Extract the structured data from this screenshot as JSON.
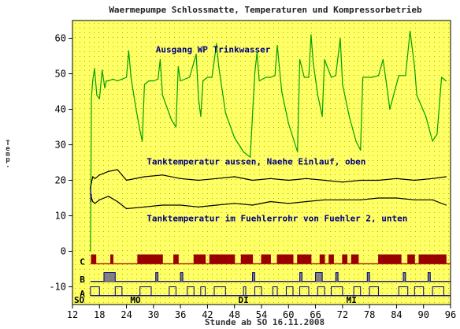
{
  "chart_data": {
    "type": "line",
    "title": "Waermepumpe Schlossmatte, Temperaturen und Kompressorbetrieb",
    "xlabel": "Stunde ab SO 16.11.2008",
    "ylabel": "Temp.",
    "xlim": [
      12,
      96
    ],
    "ylim": [
      -15,
      65
    ],
    "x_ticks": [
      12,
      18,
      24,
      30,
      36,
      42,
      48,
      54,
      60,
      66,
      72,
      78,
      84,
      90,
      96
    ],
    "y_ticks": [
      60,
      50,
      40,
      30,
      20,
      10,
      0,
      -10
    ],
    "grid": true,
    "background_color": "#ffff66",
    "day_labels": [
      {
        "x": 13.5,
        "label": "SO"
      },
      {
        "x": 26,
        "label": "MO"
      },
      {
        "x": 50,
        "label": "DI"
      },
      {
        "x": 74,
        "label": "MI"
      }
    ],
    "annotations": [
      {
        "x": 30.5,
        "y": 56,
        "text": "Ausgang WP Trinkwasser"
      },
      {
        "x": 28.5,
        "y": 24.5,
        "text": "Tanktemperatur aussen, Naehe Einlauf, oben"
      },
      {
        "x": 28.5,
        "y": 8.5,
        "text": "Tanktemperatur im Fuehlerrohr von Fuehler 2, unten"
      }
    ],
    "series": [
      {
        "color": "#00a000",
        "x": [
          16.0,
          16.2,
          16.5,
          16.9,
          17.4,
          18.0,
          18.6,
          19.2,
          19.5,
          20.0,
          21.0,
          22.0,
          23.0,
          24.0,
          24.5,
          25.0,
          26.0,
          27.0,
          27.5,
          28.0,
          29.0,
          30.0,
          31.0,
          31.5,
          32.0,
          34.0,
          35.0,
          35.5,
          36.0,
          38.0,
          39.5,
          40.0,
          40.5,
          41.0,
          42.0,
          43.0,
          44.0,
          44.5,
          46.0,
          48.0,
          50.0,
          51.5,
          52.5,
          53.0,
          53.5,
          55.0,
          56.0,
          57.0,
          57.5,
          58.5,
          60.0,
          61.0,
          62.0,
          62.5,
          63.5,
          64.5,
          65.0,
          65.5,
          66.5,
          67.5,
          68.0,
          69.5,
          70.5,
          71.5,
          72.0,
          73.5,
          75.0,
          76.0,
          76.5,
          78.5,
          80.0,
          81.0,
          82.0,
          82.5,
          84.5,
          86.0,
          87.0,
          88.0,
          88.5,
          90.5,
          92.0,
          93.0,
          94.0,
          95.0
        ],
        "y": [
          0.0,
          43.0,
          48.0,
          51.5,
          44.0,
          43.0,
          51.0,
          46.0,
          48.0,
          48.0,
          48.5,
          48.0,
          48.5,
          49.0,
          56.5,
          49.0,
          41.0,
          34.0,
          31.0,
          47.0,
          48.0,
          48.0,
          48.5,
          54.0,
          44.0,
          37.0,
          35.0,
          52.0,
          48.0,
          49.0,
          55.5,
          43.0,
          38.0,
          48.0,
          49.0,
          49.0,
          58.5,
          52.0,
          39.0,
          32.0,
          28.0,
          26.5,
          50.0,
          56.0,
          48.0,
          49.0,
          49.0,
          49.5,
          58.0,
          45.0,
          36.0,
          32.0,
          28.0,
          54.0,
          49.0,
          49.0,
          61.0,
          53.0,
          44.0,
          38.0,
          54.0,
          49.0,
          49.5,
          60.0,
          47.0,
          38.0,
          31.0,
          28.5,
          49.0,
          49.0,
          49.5,
          54.0,
          45.0,
          40.0,
          49.5,
          49.5,
          62.0,
          52.0,
          44.0,
          38.0,
          31.0,
          33.0,
          49.0,
          48.0
        ]
      },
      {
        "color": "#000000",
        "x": [
          16.0,
          16.5,
          17.0,
          18.0,
          20.0,
          22.0,
          24.0,
          28.0,
          32.0,
          36.0,
          40.0,
          44.0,
          48.0,
          52.0,
          56.0,
          60.0,
          64.0,
          68.0,
          72.0,
          76.0,
          80.0,
          84.0,
          88.0,
          92.0,
          95.0
        ],
        "y": [
          18.0,
          21.0,
          20.5,
          21.5,
          22.5,
          23.0,
          20.0,
          21.0,
          21.5,
          20.5,
          20.0,
          20.5,
          21.0,
          20.0,
          20.5,
          20.0,
          20.5,
          20.0,
          19.5,
          20.0,
          20.0,
          20.5,
          20.0,
          20.5,
          21.0
        ]
      },
      {
        "color": "#000000",
        "x": [
          16.0,
          16.5,
          17.0,
          18.0,
          20.0,
          22.0,
          24.0,
          28.0,
          32.0,
          36.0,
          40.0,
          44.0,
          48.0,
          52.0,
          56.0,
          60.0,
          64.0,
          68.0,
          72.0,
          76.0,
          80.0,
          84.0,
          88.0,
          92.0,
          95.0
        ],
        "y": [
          16.0,
          14.0,
          13.5,
          14.5,
          15.5,
          14.0,
          12.0,
          12.5,
          13.0,
          13.0,
          12.5,
          13.0,
          13.5,
          13.0,
          14.0,
          13.5,
          14.0,
          14.5,
          14.5,
          14.5,
          15.0,
          15.0,
          14.5,
          14.5,
          13.0
        ]
      },
      {
        "color": "#000080",
        "x": [
          16.0,
          16.1,
          16.2
        ],
        "y": [
          18.0,
          14.0,
          16.0
        ]
      }
    ],
    "channels": [
      {
        "label": "C",
        "baseline": -3.5,
        "on_level": -1.0,
        "line_color": "#990000",
        "fill_color": "#990000",
        "intervals": [
          [
            16.2,
            17.2
          ],
          [
            20.5,
            21.0
          ],
          [
            26.5,
            32.0
          ],
          [
            34.5,
            35.5
          ],
          [
            39.0,
            41.5
          ],
          [
            42.5,
            48.0
          ],
          [
            49.5,
            52.0
          ],
          [
            54.0,
            56.0
          ],
          [
            57.5,
            61.0
          ],
          [
            62.0,
            65.0
          ],
          [
            67.0,
            68.0
          ],
          [
            69.0,
            70.0
          ],
          [
            72.0,
            73.0
          ],
          [
            74.0,
            75.5
          ],
          [
            80.0,
            85.0
          ],
          [
            86.5,
            88.0
          ],
          [
            89.0,
            95.0
          ]
        ]
      },
      {
        "label": "B",
        "baseline": -8.5,
        "on_level": -6.0,
        "line_color": "#000080",
        "fill_color": "#808080",
        "intervals": [
          [
            19.0,
            21.5
          ],
          [
            30.5,
            31.0
          ],
          [
            36.0,
            36.5
          ],
          [
            52.0,
            52.5
          ],
          [
            62.5,
            63.0
          ],
          [
            66.0,
            67.5
          ],
          [
            70.5,
            71.0
          ],
          [
            77.5,
            78.0
          ],
          [
            85.5,
            86.0
          ],
          [
            91.0,
            91.5
          ]
        ]
      },
      {
        "label": "A",
        "baseline": -12.5,
        "on_level": -10.0,
        "line_color": "#000080",
        "fill_color": "none",
        "intervals": [
          [
            16.0,
            18.0
          ],
          [
            21.5,
            23.0
          ],
          [
            27.0,
            29.5
          ],
          [
            33.5,
            35.0
          ],
          [
            37.5,
            39.0
          ],
          [
            40.5,
            41.5
          ],
          [
            43.5,
            46.0
          ],
          [
            50.0,
            50.5
          ],
          [
            52.5,
            54.0
          ],
          [
            56.5,
            57.5
          ],
          [
            59.5,
            61.0
          ],
          [
            62.5,
            64.5
          ],
          [
            66.5,
            68.0
          ],
          [
            69.5,
            72.0
          ],
          [
            74.5,
            76.0
          ],
          [
            78.0,
            80.0
          ],
          [
            84.5,
            86.5
          ],
          [
            88.0,
            90.0
          ],
          [
            92.0,
            94.5
          ]
        ]
      }
    ]
  }
}
